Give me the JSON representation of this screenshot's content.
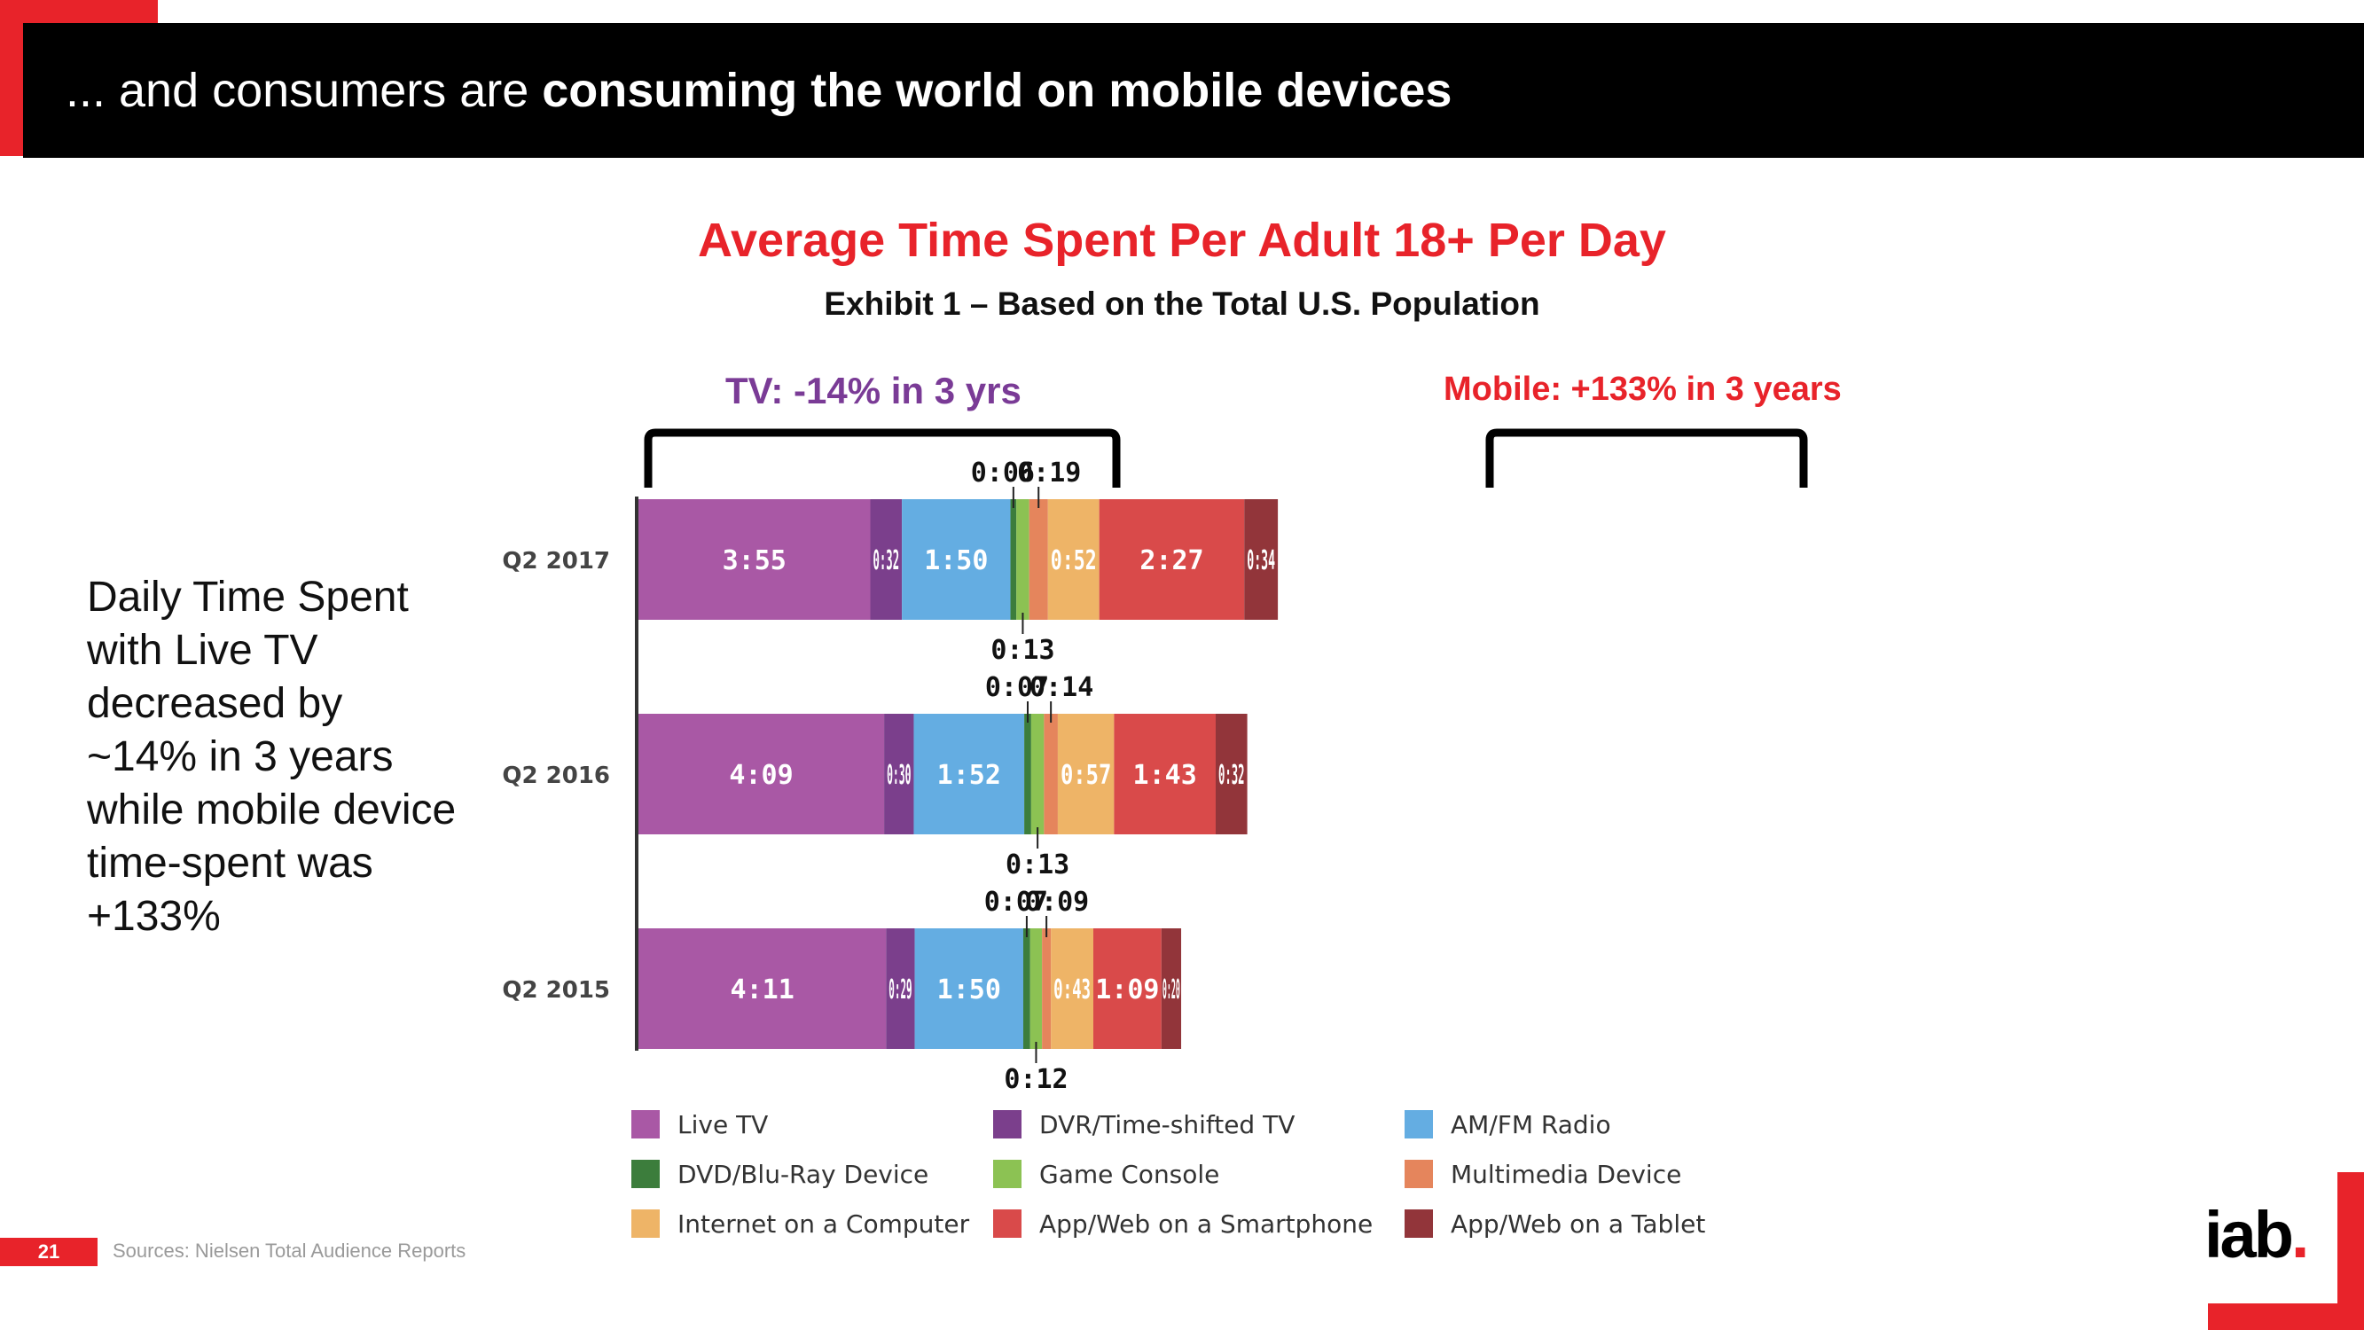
{
  "slide": {
    "title_prefix": "... and consumers are ",
    "title_bold": "consuming the world on mobile devices",
    "side_text": "Daily Time Spent with Live TV decreased by ~14% in 3 years while mobile device time-spent was +133%",
    "page_number": "21",
    "source": "Sources: Nielsen Total Audience Reports",
    "logo_text": "iab",
    "logo_dot": "."
  },
  "annotations": {
    "tv": "TV: -14% in 3 yrs",
    "mobile": "Mobile: +133% in 3 years"
  },
  "chart_data": {
    "type": "bar",
    "orientation": "horizontal",
    "stacked": true,
    "title": "Average Time Spent Per Adult 18+ Per Day",
    "subtitle": "Exhibit 1 – Based on the Total U.S. Population",
    "categories": [
      "Q2 2017",
      "Q2 2016",
      "Q2 2015"
    ],
    "legend_position": "bottom",
    "series": [
      {
        "name": "Live TV",
        "color": "#a958a5",
        "values": [
          "3:55",
          "4:09",
          "4:11"
        ]
      },
      {
        "name": "DVR/Time-shifted TV",
        "color": "#7b3f8c",
        "values": [
          "0:32",
          "0:30",
          "0:29"
        ]
      },
      {
        "name": "AM/FM Radio",
        "color": "#64ade2",
        "values": [
          "1:50",
          "1:52",
          "1:50"
        ]
      },
      {
        "name": "DVD/Blu-Ray Device",
        "color": "#3c7d3c",
        "values": [
          "0:06",
          "0:07",
          "0:07"
        ]
      },
      {
        "name": "Game Console",
        "color": "#8cc253",
        "values": [
          "0:13",
          "0:13",
          "0:12"
        ]
      },
      {
        "name": "Multimedia Device",
        "color": "#e5855c",
        "values": [
          "0:19",
          "0:14",
          "0:09"
        ]
      },
      {
        "name": "Internet on a Computer",
        "color": "#eeb467",
        "values": [
          "0:52",
          "0:57",
          "0:43"
        ]
      },
      {
        "name": "App/Web on a Smartphone",
        "color": "#d94a4a",
        "values": [
          "2:27",
          "1:43",
          "1:09"
        ]
      },
      {
        "name": "App/Web on a Tablet",
        "color": "#92353a",
        "values": [
          "0:34",
          "0:32",
          "0:20"
        ]
      }
    ]
  }
}
